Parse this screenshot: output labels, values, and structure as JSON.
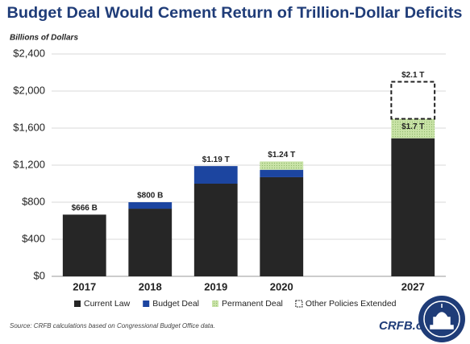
{
  "chart_data": {
    "type": "stacked_bar",
    "title": "Budget Deal Would Cement Return of Trillion-Dollar Deficits",
    "y_axis_label": "Billions of Dollars",
    "categories": [
      "2017",
      "2018",
      "2019",
      "2020",
      null,
      "2027"
    ],
    "series": [
      {
        "name": "Current Law",
        "color": "#262626",
        "style": "solid",
        "values": [
          666,
          730,
          1000,
          1070,
          null,
          1490
        ]
      },
      {
        "name": "Budget Deal",
        "color": "#1c45a0",
        "style": "solid",
        "values": [
          0,
          70,
          190,
          80,
          null,
          0
        ]
      },
      {
        "name": "Permanent Deal",
        "color": "#c9e3a7",
        "style": "dotted",
        "values": [
          0,
          0,
          0,
          90,
          null,
          210
        ]
      },
      {
        "name": "Other Policies Extended",
        "color": "#ffffff",
        "style": "dashed",
        "values": [
          0,
          0,
          0,
          0,
          null,
          400
        ]
      }
    ],
    "total_labels": {
      "values": [
        666,
        800,
        1190,
        1240,
        null,
        2100
      ],
      "value_labels": [
        "$666 B",
        "$800 B",
        "$1.19 T",
        "$1.24 T",
        null,
        "$2.1 T"
      ]
    },
    "subtotal_labels": {
      "values": [
        null,
        null,
        null,
        null,
        null,
        1700
      ],
      "value_labels": [
        null,
        null,
        null,
        null,
        null,
        "$1.7 T"
      ]
    },
    "ylim": [
      0,
      2400
    ],
    "yticks": [
      {
        "value": 0,
        "label": "$0"
      },
      {
        "value": 400,
        "label": "$400"
      },
      {
        "value": 800,
        "label": "$800"
      },
      {
        "value": 1200,
        "label": "$1,200"
      },
      {
        "value": 1600,
        "label": "$1,600"
      },
      {
        "value": 2000,
        "label": "$2,000"
      },
      {
        "value": 2400,
        "label": "$2,400"
      }
    ],
    "grid": true,
    "legend": "bottom",
    "source": "Source: CRFB calculations based on Congressional Budget Office data.",
    "logo": "CRFB.org"
  }
}
